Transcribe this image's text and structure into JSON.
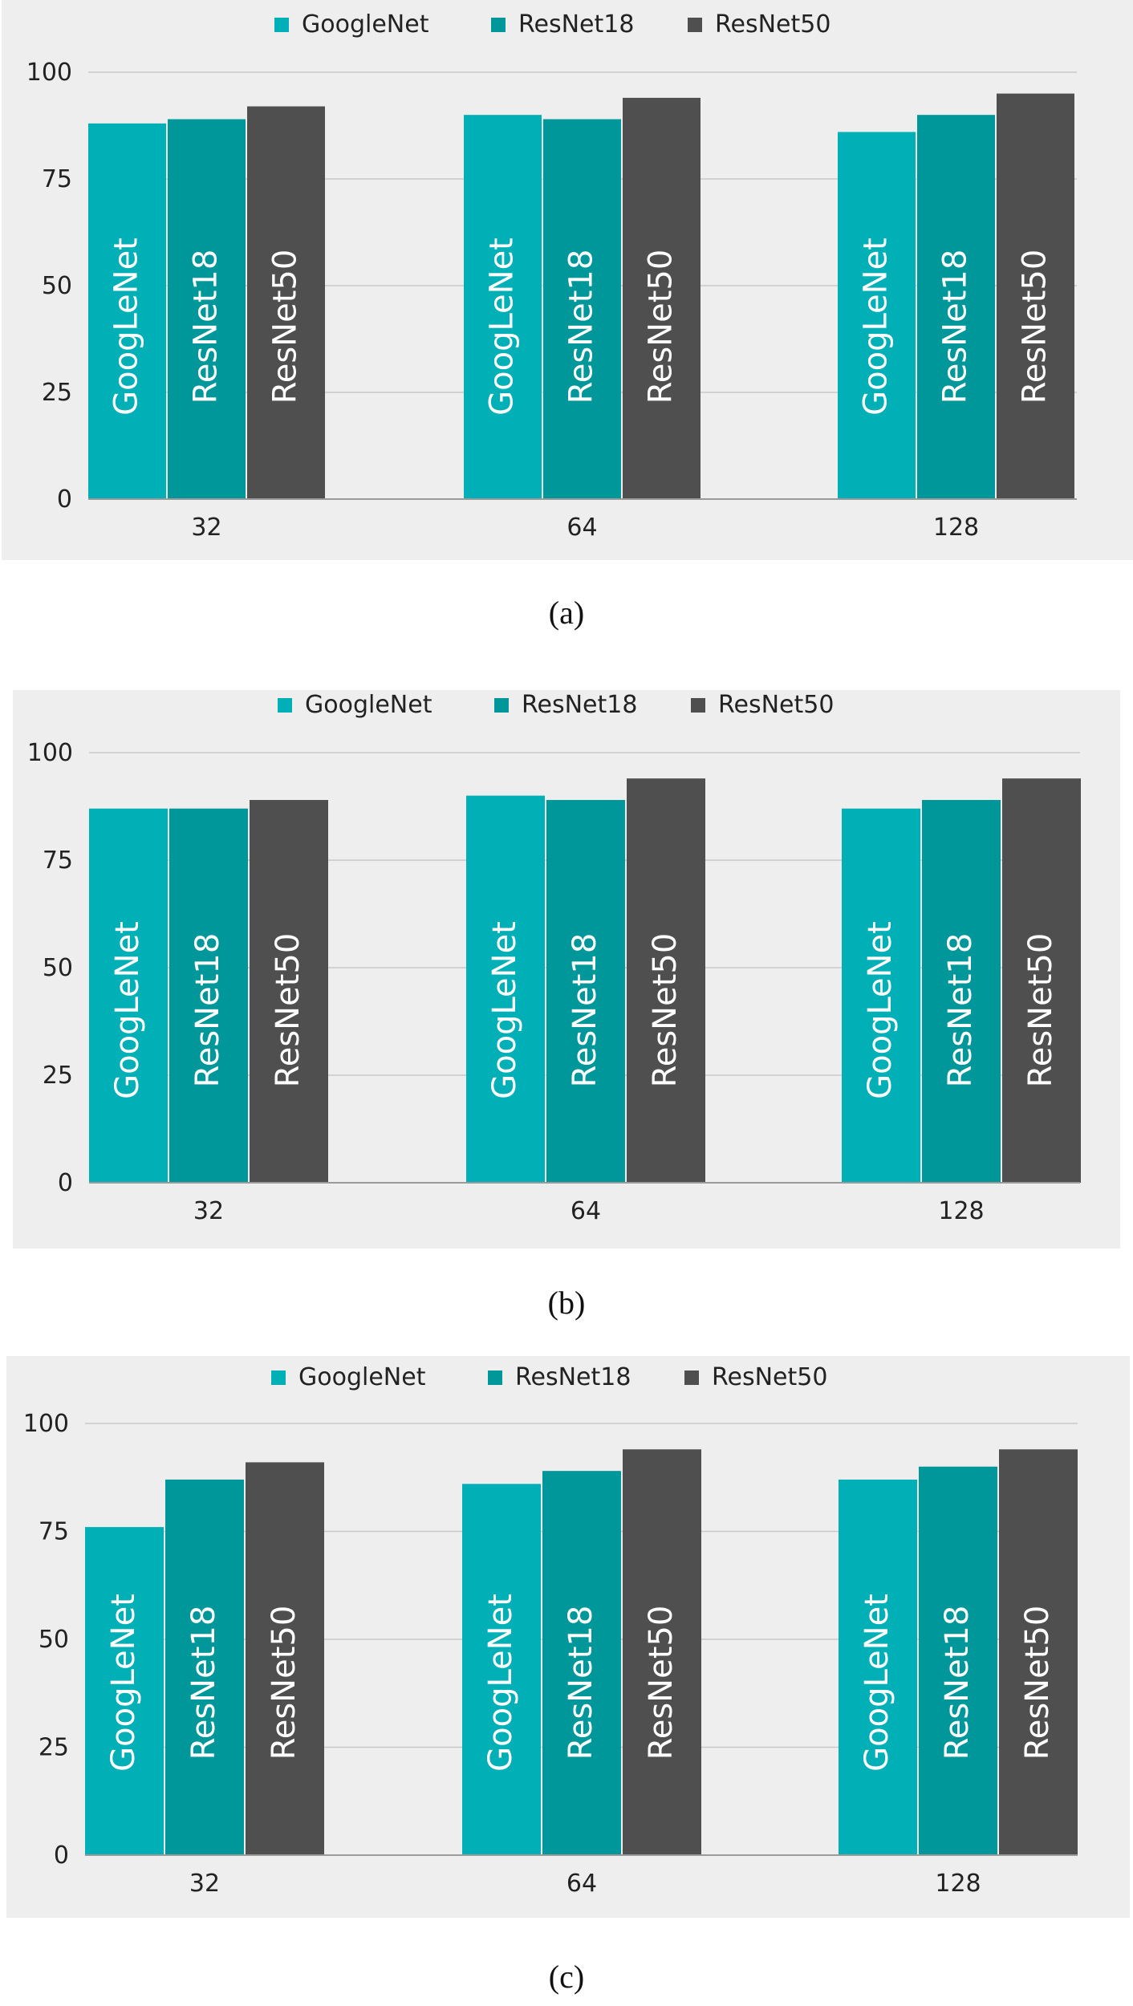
{
  "colors": {
    "GoogleNet": "#00b0b6",
    "ResNet18": "#00979a",
    "ResNet50": "#4f4f4f",
    "background": "#eeeeee",
    "grid": "#c9c9c9",
    "axis_text": "#222222",
    "bar_text": "#ffffff"
  },
  "chart_data": [
    {
      "type": "bar",
      "caption": "(a)",
      "legend": [
        "GoogleNet",
        "ResNet18",
        "ResNet50"
      ],
      "bar_labels": [
        "GoogLeNet",
        "ResNet18",
        "ResNet50"
      ],
      "categories": [
        "32",
        "64",
        "128"
      ],
      "ylim": [
        0,
        100
      ],
      "yticks": [
        "0",
        "25",
        "50",
        "75",
        "100"
      ],
      "series": [
        {
          "name": "GoogleNet",
          "values": [
            88,
            90,
            86
          ]
        },
        {
          "name": "ResNet18",
          "values": [
            89,
            89,
            90
          ]
        },
        {
          "name": "ResNet50",
          "values": [
            92,
            94,
            95
          ]
        }
      ]
    },
    {
      "type": "bar",
      "caption": "(b)",
      "legend": [
        "GoogleNet",
        "ResNet18",
        "ResNet50"
      ],
      "bar_labels": [
        "GoogLeNet",
        "ResNet18",
        "ResNet50"
      ],
      "categories": [
        "32",
        "64",
        "128"
      ],
      "ylim": [
        0,
        100
      ],
      "yticks": [
        "0",
        "25",
        "50",
        "75",
        "100"
      ],
      "series": [
        {
          "name": "GoogleNet",
          "values": [
            87,
            90,
            87
          ]
        },
        {
          "name": "ResNet18",
          "values": [
            87,
            89,
            89
          ]
        },
        {
          "name": "ResNet50",
          "values": [
            89,
            94,
            94
          ]
        }
      ]
    },
    {
      "type": "bar",
      "caption": "(c)",
      "legend": [
        "GoogleNet",
        "ResNet18",
        "ResNet50"
      ],
      "bar_labels": [
        "GoogLeNet",
        "ResNet18",
        "ResNet50"
      ],
      "categories": [
        "32",
        "64",
        "128"
      ],
      "ylim": [
        0,
        100
      ],
      "yticks": [
        "0",
        "25",
        "50",
        "75",
        "100"
      ],
      "series": [
        {
          "name": "GoogleNet",
          "values": [
            76,
            86,
            87
          ]
        },
        {
          "name": "ResNet18",
          "values": [
            87,
            89,
            90
          ]
        },
        {
          "name": "ResNet50",
          "values": [
            91,
            94,
            94
          ]
        }
      ]
    }
  ]
}
